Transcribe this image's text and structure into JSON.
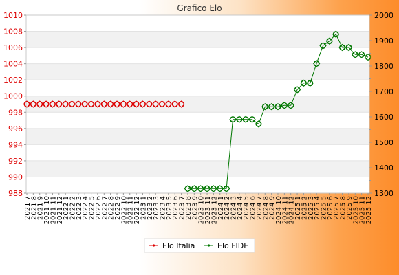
{
  "chart_data": {
    "type": "line",
    "title": "Grafico Elo",
    "categories": [
      "2021 7",
      "2021 8",
      "2021 9",
      "2021 10",
      "2021 11",
      "2021 12",
      "2022 1",
      "2022 2",
      "2022 3",
      "2022 4",
      "2022 5",
      "2022 6",
      "2022 7",
      "2022 8",
      "2022 9",
      "2022 10",
      "2022 11",
      "2022 12",
      "2023 1",
      "2023 2",
      "2023 3",
      "2023 4",
      "2023 5",
      "2023 6",
      "2023 7",
      "2023 8",
      "2023 9",
      "2023 10",
      "2023 11",
      "2023 12",
      "2024 1",
      "2024 2",
      "2024 3",
      "2024 4",
      "2024 5",
      "2024 6",
      "2024 7",
      "2024 8",
      "2024 9",
      "2024 10",
      "2024 11",
      "2024 12",
      "2025 1",
      "2025 2",
      "2025 3",
      "2025 4",
      "2025 5",
      "2025 6",
      "2025 7",
      "2025 8",
      "2025 9",
      "2025 10",
      "2025 11",
      "2025 12"
    ],
    "y_left": {
      "ticks": [
        988,
        990,
        992,
        994,
        996,
        998,
        1000,
        1002,
        1004,
        1006,
        1008,
        1010
      ],
      "ylim": [
        988,
        1010
      ],
      "color": "#dd0000"
    },
    "y_right": {
      "ticks": [
        1300,
        1400,
        1500,
        1600,
        1700,
        1800,
        1900,
        2000
      ],
      "ylim": [
        1300,
        2000
      ],
      "color": "#000000"
    },
    "grid": true,
    "legend_position": "bottom-center",
    "series": [
      {
        "name": "Elo Italia",
        "axis": "left",
        "color": "#dd0000",
        "values": [
          999,
          999,
          999,
          999,
          999,
          999,
          999,
          999,
          999,
          999,
          999,
          999,
          999,
          999,
          999,
          999,
          999,
          999,
          999,
          999,
          999,
          999,
          999,
          999,
          999,
          null,
          null,
          null,
          null,
          null,
          null,
          null,
          null,
          null,
          null,
          null,
          null,
          null,
          null,
          null,
          null,
          null,
          null,
          null,
          null,
          null,
          null,
          null,
          null,
          null,
          null,
          null,
          null,
          null
        ]
      },
      {
        "name": "Elo FIDE",
        "axis": "right",
        "color": "#007700",
        "values": [
          null,
          null,
          null,
          null,
          null,
          null,
          null,
          null,
          null,
          null,
          null,
          null,
          null,
          null,
          null,
          null,
          null,
          null,
          null,
          null,
          null,
          null,
          null,
          null,
          null,
          1318,
          1318,
          1318,
          1318,
          1318,
          1318,
          1318,
          1590,
          1590,
          1590,
          1590,
          1572,
          1640,
          1640,
          1640,
          1645,
          1645,
          1707,
          1733,
          1733,
          1810,
          1880,
          1898,
          1925,
          1873,
          1873,
          1845,
          1845,
          1835
        ]
      }
    ]
  }
}
